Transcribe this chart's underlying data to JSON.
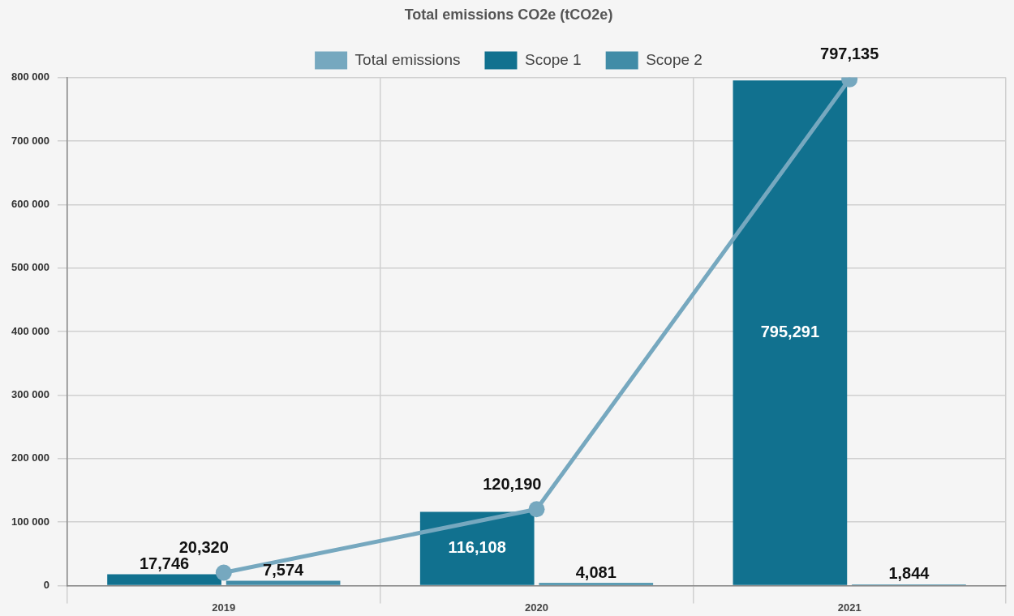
{
  "chart_data": {
    "type": "bar",
    "title": "Total emissions CO2e (tCO2e)",
    "categories": [
      "2019",
      "2020",
      "2021"
    ],
    "series": [
      {
        "name": "Total emissions",
        "type": "line",
        "color": "#76a8bf",
        "values": [
          20320,
          120190,
          797135
        ],
        "value_labels": [
          "20,320",
          "120,190",
          "797,135"
        ]
      },
      {
        "name": "Scope 1",
        "color": "#11718f",
        "values": [
          17746,
          116108,
          795291
        ],
        "value_labels": [
          "17,746",
          "116,108",
          "795,291"
        ]
      },
      {
        "name": "Scope 2",
        "color": "#418ca7",
        "values": [
          7574,
          4081,
          1844
        ],
        "value_labels": [
          "7,574",
          "4,081",
          "1,844"
        ]
      }
    ],
    "ylim": [
      0,
      800000
    ],
    "yticks": [
      0,
      {
        "value": 100000,
        "label": "100 000"
      },
      {
        "value": 200000,
        "label": "200 000"
      },
      {
        "value": 300000,
        "label": "300 000"
      },
      {
        "value": 400000,
        "label": "400 000"
      },
      {
        "value": 500000,
        "label": "500 000"
      },
      {
        "value": 600000,
        "label": "600 000"
      },
      {
        "value": 700000,
        "label": "700 000"
      },
      {
        "value": 800000,
        "label": "800 000"
      }
    ],
    "grid": true,
    "legend": "top",
    "marker": "circle"
  }
}
